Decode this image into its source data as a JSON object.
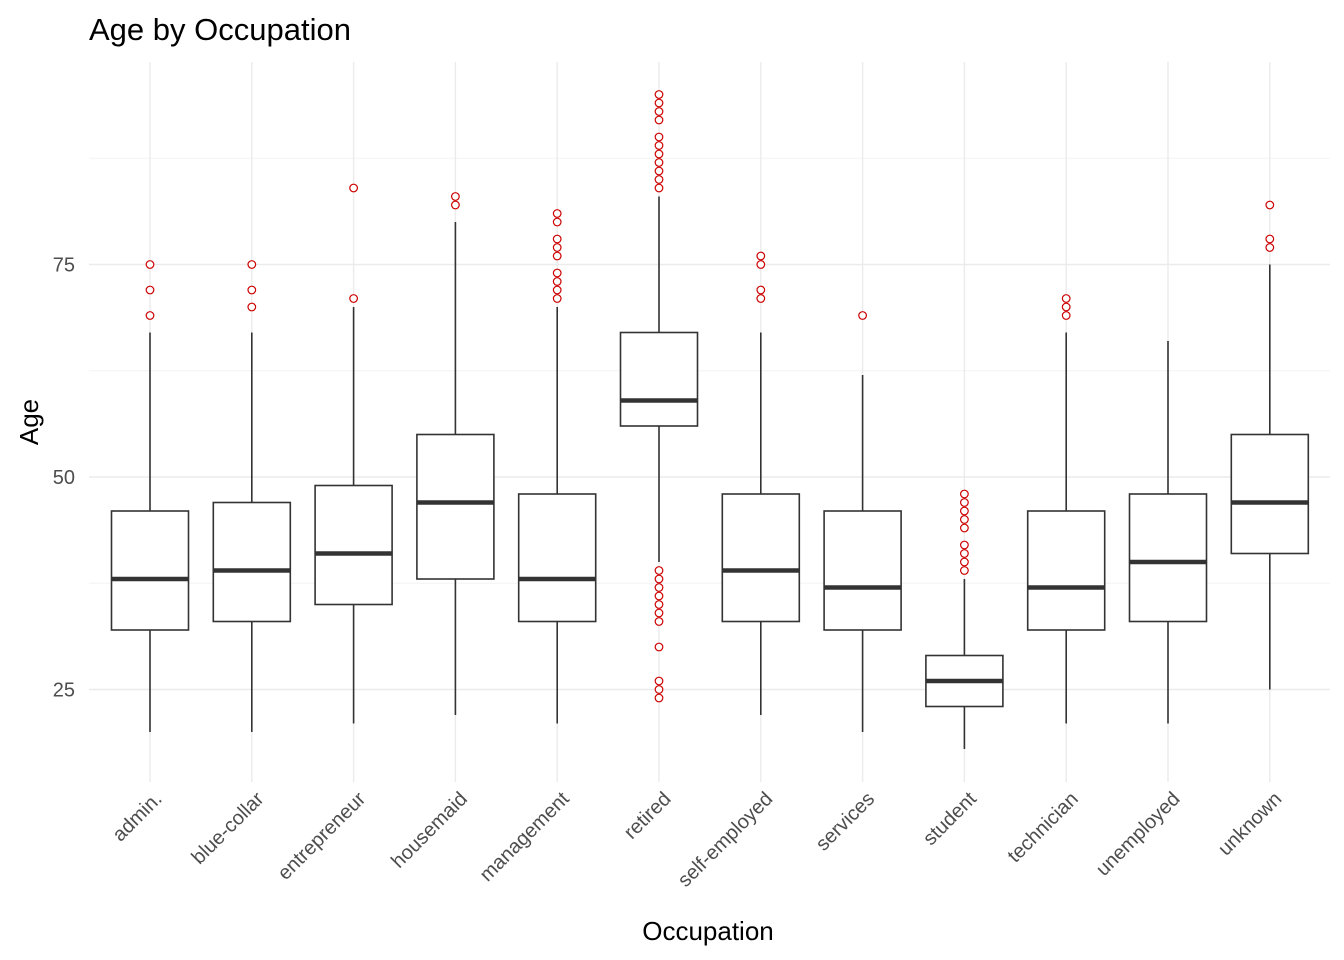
{
  "chart_data": {
    "type": "boxplot",
    "title": "Age by Occupation",
    "xlabel": "Occupation",
    "ylabel": "Age",
    "ylim": [
      14,
      97
    ],
    "y_ticks": [
      25,
      50,
      75
    ],
    "grid": true,
    "outlier_color": "#cc0000",
    "box_color": "#333333",
    "categories": [
      "admin.",
      "blue-collar",
      "entrepreneur",
      "housemaid",
      "management",
      "retired",
      "self-employed",
      "services",
      "student",
      "technician",
      "unemployed",
      "unknown"
    ],
    "boxes": [
      {
        "category": "admin.",
        "whisker_low": 20,
        "q1": 32,
        "median": 38,
        "q3": 46,
        "whisker_high": 67,
        "outliers": [
          69,
          72,
          75
        ]
      },
      {
        "category": "blue-collar",
        "whisker_low": 20,
        "q1": 33,
        "median": 39,
        "q3": 47,
        "whisker_high": 67,
        "outliers": [
          70,
          72,
          75
        ]
      },
      {
        "category": "entrepreneur",
        "whisker_low": 21,
        "q1": 35,
        "median": 41,
        "q3": 49,
        "whisker_high": 70,
        "outliers": [
          71,
          84
        ]
      },
      {
        "category": "housemaid",
        "whisker_low": 22,
        "q1": 38,
        "median": 47,
        "q3": 55,
        "whisker_high": 80,
        "outliers": [
          82,
          83
        ]
      },
      {
        "category": "management",
        "whisker_low": 21,
        "q1": 33,
        "median": 38,
        "q3": 48,
        "whisker_high": 70,
        "outliers": [
          71,
          72,
          73,
          74,
          76,
          77,
          78,
          80,
          81
        ]
      },
      {
        "category": "retired",
        "whisker_low": 40,
        "q1": 56,
        "median": 59,
        "q3": 67,
        "whisker_high": 83,
        "outliers": [
          24,
          25,
          26,
          30,
          33,
          34,
          35,
          36,
          37,
          38,
          39,
          84,
          85,
          86,
          87,
          88,
          89,
          90,
          92,
          93,
          94,
          95
        ]
      },
      {
        "category": "self-employed",
        "whisker_low": 22,
        "q1": 33,
        "median": 39,
        "q3": 48,
        "whisker_high": 67,
        "outliers": [
          71,
          72,
          75,
          76
        ]
      },
      {
        "category": "services",
        "whisker_low": 20,
        "q1": 32,
        "median": 37,
        "q3": 46,
        "whisker_high": 62,
        "outliers": [
          69
        ]
      },
      {
        "category": "student",
        "whisker_low": 18,
        "q1": 23,
        "median": 26,
        "q3": 29,
        "whisker_high": 38,
        "outliers": [
          39,
          40,
          41,
          42,
          44,
          45,
          46,
          47,
          48
        ]
      },
      {
        "category": "technician",
        "whisker_low": 21,
        "q1": 32,
        "median": 37,
        "q3": 46,
        "whisker_high": 67,
        "outliers": [
          69,
          70,
          71
        ]
      },
      {
        "category": "unemployed",
        "whisker_low": 21,
        "q1": 33,
        "median": 40,
        "q3": 48,
        "whisker_high": 66,
        "outliers": []
      },
      {
        "category": "unknown",
        "whisker_low": 25,
        "q1": 41,
        "median": 47,
        "q3": 55,
        "whisker_high": 75,
        "outliers": [
          77,
          78,
          82
        ]
      }
    ]
  }
}
